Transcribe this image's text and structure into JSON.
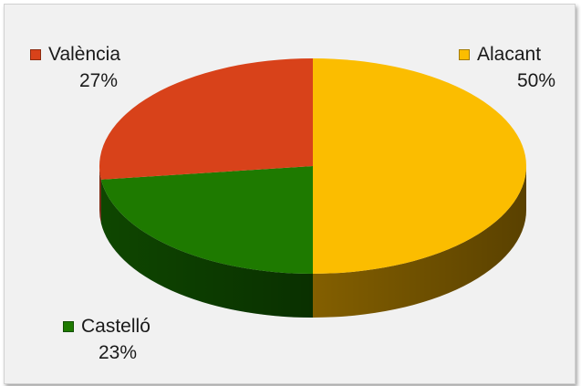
{
  "chart_data": {
    "type": "pie",
    "slices": [
      {
        "label": "Alacant",
        "value": 50,
        "value_label": "50%",
        "color": "#fbbd00",
        "side_color": "#8a6400"
      },
      {
        "label": "Castelló",
        "value": 23,
        "value_label": "23%",
        "color": "#1e7a00",
        "side_color": "#0f4a00"
      },
      {
        "label": "València",
        "value": 27,
        "value_label": "27%",
        "color": "#d8421a",
        "side_color": "#8e2a10"
      }
    ],
    "style": "3d",
    "legend_placement": "around",
    "background": "#f1f1f1"
  }
}
